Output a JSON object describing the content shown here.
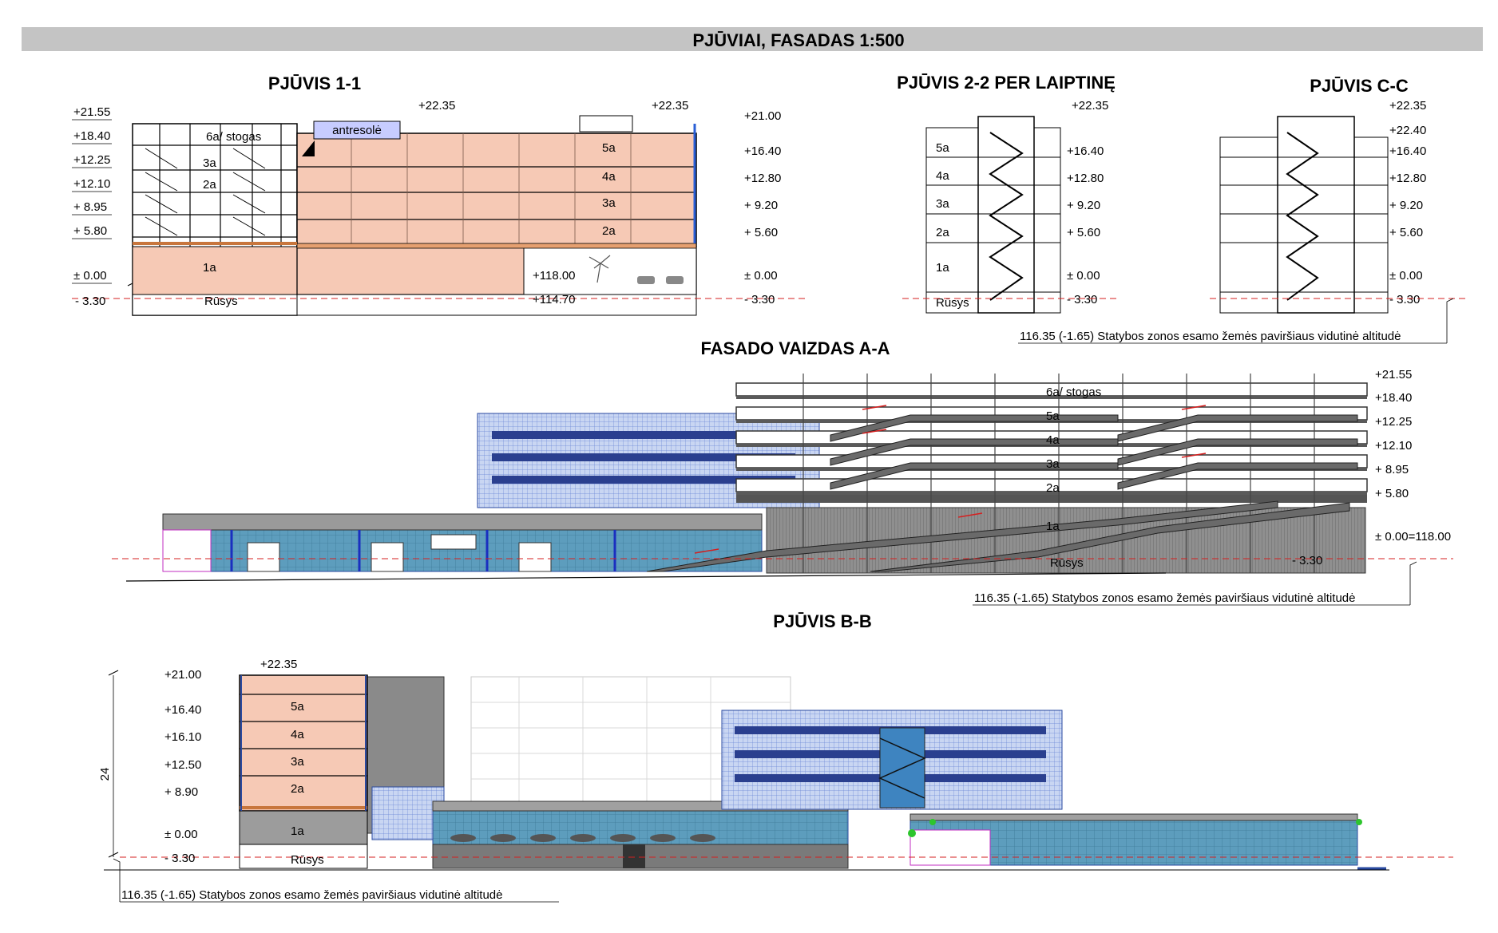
{
  "sheet_title": "PJŪVIAI, FASADAS 1:500",
  "colors": {
    "title_bar": "#c4c4c4",
    "salmon": "#f6c9b5",
    "blue_glass": "#4b8fb3",
    "light_blue": "#9fb0e8",
    "grey": "#8a8a8a",
    "dark_grey": "#555555",
    "datum_line": "#d61f1f"
  },
  "sections": {
    "s11": {
      "title": "PJŪVIS 1-1",
      "left_levels": [
        "+21.55",
        "+18.40",
        "+12.25",
        "+12.10",
        "+ 8.95",
        "+ 5.80",
        "± 0.00",
        "- 3.30"
      ],
      "top_levels": [
        "+22.35",
        "+22.35"
      ],
      "right_levels": [
        "+21.00",
        "+16.40",
        "+12.80",
        "+ 9.20",
        "+ 5.60",
        "± 0.00",
        "- 3.30"
      ],
      "inner_levels": [
        "+118.00",
        "+114.70"
      ],
      "labels": {
        "mezzanine": "antresolė",
        "roof": "6a/ stogas",
        "f5": "5a",
        "f4": "4a",
        "f3": "3a",
        "f2": "2a",
        "f1": "1a",
        "basement": "Rūsys"
      }
    },
    "s22": {
      "title": "PJŪVIS 2-2 PER LAIPTINĘ",
      "levels": [
        "+22.35",
        "+16.40",
        "+12.80",
        "+ 9.20",
        "+ 5.60",
        "± 0.00",
        "- 3.30"
      ],
      "floors": [
        "5a",
        "4a",
        "3a",
        "2a",
        "1a",
        "Rūsys"
      ]
    },
    "scc": {
      "title": "PJŪVIS C-C",
      "levels": [
        "+22.35",
        "+22.40",
        "+16.40",
        "+12.80",
        "+ 9.20",
        "+ 5.60",
        "± 0.00",
        "- 3.30"
      ],
      "ground_note": "116.35 (-1.65) Statybos zonos esamo žemės paviršiaus vidutinė altitudė"
    },
    "faa": {
      "title": "FASADO VAIZDAS A-A",
      "levels": [
        "+21.55",
        "+18.40",
        "+12.25",
        "+12.10",
        "+ 8.95",
        "+ 5.80",
        "± 0.00=118.00",
        "- 3.30"
      ],
      "floors": [
        "6a/ stogas",
        "5a",
        "4a",
        "3a",
        "2a",
        "1a",
        "Rūsys"
      ],
      "ground_note": "116.35 (-1.65) Statybos zonos esamo žemės paviršiaus vidutinė altitudė"
    },
    "sbb": {
      "title": "PJŪVIS B-B",
      "height_dim": "24",
      "top_level": "+22.35",
      "levels": [
        "+21.00",
        "+16.40",
        "+16.10",
        "+12.50",
        "+ 8.90",
        "± 0.00",
        "- 3.30"
      ],
      "floors": [
        "5a",
        "4a",
        "3a",
        "2a",
        "1a",
        "Rūsys"
      ],
      "ground_note": "116.35 (-1.65) Statybos zonos esamo žemės paviršiaus vidutinė altitudė"
    }
  }
}
